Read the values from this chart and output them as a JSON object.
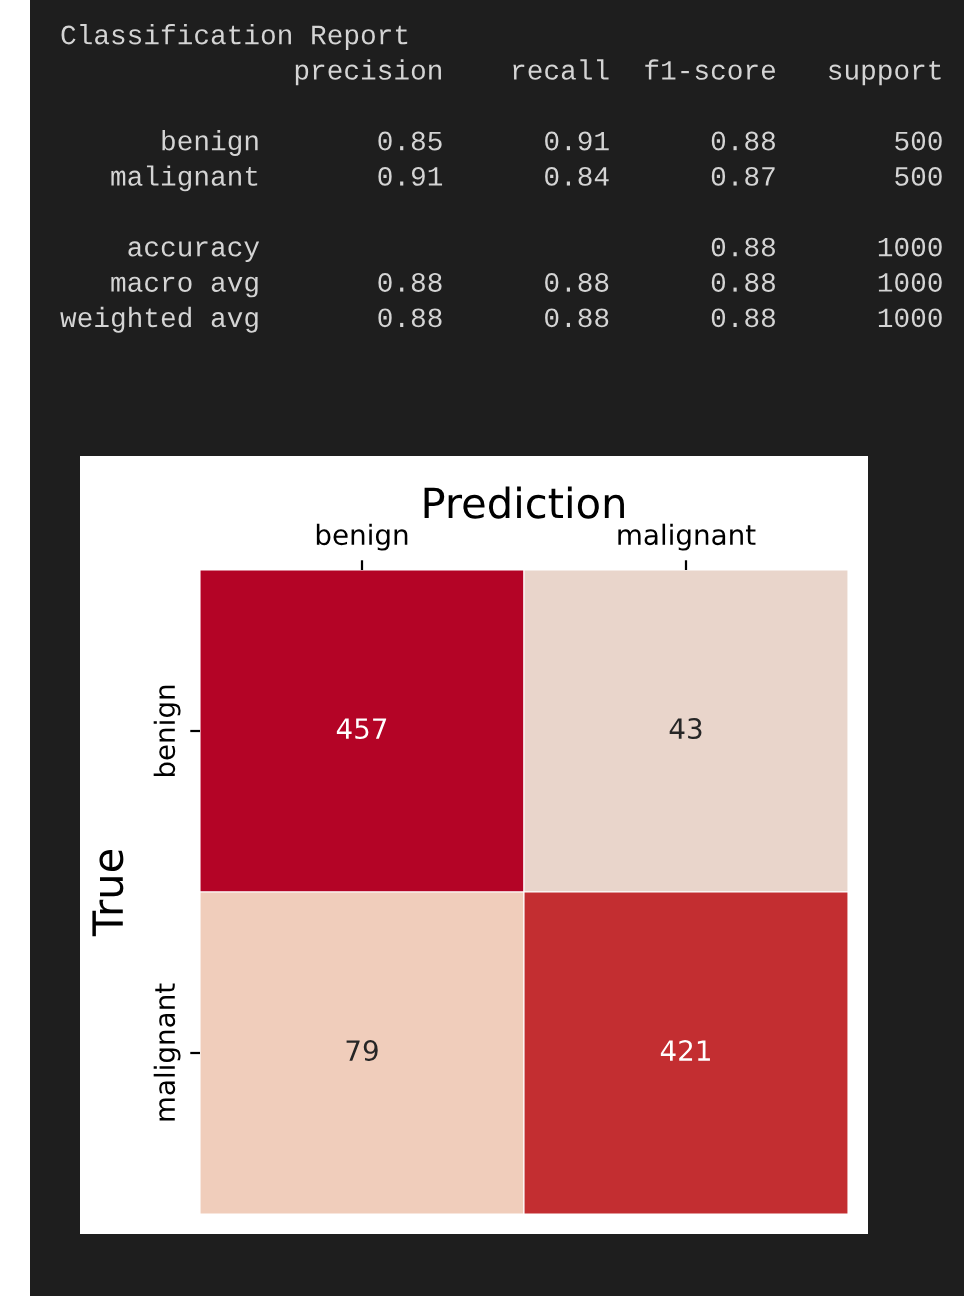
{
  "chart_data": {
    "type": "heatmap",
    "xlabel": "Prediction",
    "ylabel": "True",
    "categories": [
      "benign",
      "malignant"
    ],
    "y_categories": [
      "benign",
      "malignant"
    ],
    "cells": [
      [
        457,
        43
      ],
      [
        79,
        421
      ]
    ],
    "data_labels": true,
    "annotations": [
      "Classification Report\n              precision    recall  f1-score   support\n\n      benign       0.85      0.91      0.88       500\n   malignant       0.91      0.84      0.87       500\n\n    accuracy                           0.88      1000\n   macro avg       0.88      0.88      0.88      1000\nweighted avg       0.88      0.88      0.88      1000"
    ]
  }
}
